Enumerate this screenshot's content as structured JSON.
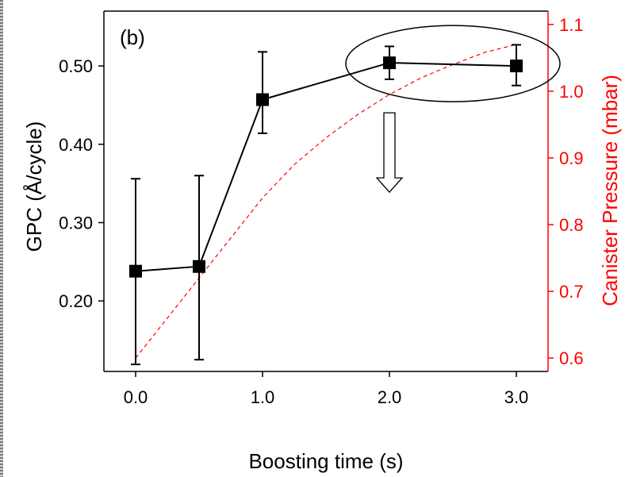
{
  "chart_data": {
    "type": "line",
    "panel_label": "(b)",
    "xlabel": "Boosting time (s)",
    "ylabel_left": "GPC (Å/cycle)",
    "ylabel_right": "Canister Pressure (mbar)",
    "x_ticks": [
      "0.0",
      "1.0",
      "2.0",
      "3.0"
    ],
    "x_tick_values": [
      0,
      1,
      2,
      3
    ],
    "xlim": [
      -0.25,
      3.25
    ],
    "y_left_ticks": [
      "0.20",
      "0.30",
      "0.40",
      "0.50"
    ],
    "y_left_tick_values": [
      0.2,
      0.3,
      0.4,
      0.5
    ],
    "ylim_left": [
      0.11,
      0.57
    ],
    "y_right_ticks": [
      "0.6",
      "0.7",
      "0.8",
      "0.9",
      "1.0",
      "1.1"
    ],
    "y_right_tick_values": [
      0.6,
      0.7,
      0.8,
      0.9,
      1.0,
      1.1
    ],
    "ylim_right": [
      0.58,
      1.12
    ],
    "series": [
      {
        "axis": "left",
        "style": "solid line with square markers and error bars",
        "color": "#000000",
        "x": [
          0.0,
          0.5,
          1.0,
          2.0,
          3.0
        ],
        "y": [
          0.238,
          0.244,
          0.457,
          0.504,
          0.5
        ],
        "y_err_low": [
          0.119,
          0.119,
          0.043,
          0.021,
          0.025
        ],
        "y_err_high": [
          0.118,
          0.116,
          0.061,
          0.021,
          0.027
        ]
      },
      {
        "axis": "right",
        "style": "dashed line",
        "color": "#ff0000",
        "x": [
          0.0,
          0.25,
          0.5,
          0.75,
          1.0,
          1.25,
          1.5,
          1.75,
          2.0,
          2.25,
          2.5,
          2.75,
          3.0
        ],
        "y": [
          0.6,
          0.66,
          0.72,
          0.78,
          0.84,
          0.89,
          0.93,
          0.965,
          0.995,
          1.02,
          1.04,
          1.058,
          1.07
        ]
      }
    ],
    "annotations": {
      "highlight": "ellipse around the points at x = 2.0 and x = 3.0",
      "arrow": "hollow downward arrow below the ellipse"
    },
    "colors": {
      "left_axis": "#000000",
      "right_axis": "#ff0000"
    },
    "grid": false,
    "legend": "none"
  }
}
